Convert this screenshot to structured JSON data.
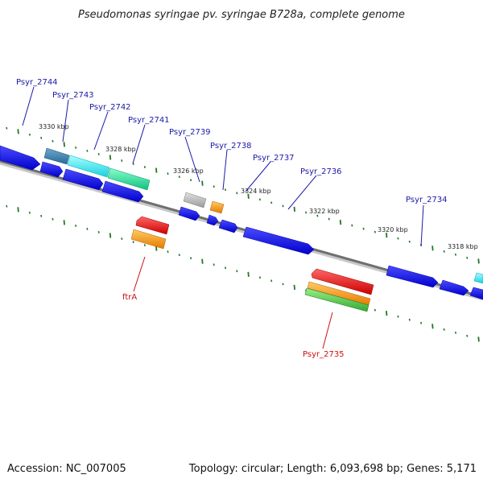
{
  "title": "Pseudomonas syringae pv. syringae B728a, complete genome",
  "footer": {
    "accession": "Accession: NC_007005",
    "summary": "Topology: circular; Length: 6,093,698 bp; Genes: 5,171"
  },
  "scale_labels": [
    "3330 kbp",
    "3328 kbp",
    "3326 kbp",
    "3324 kbp",
    "3322 kbp",
    "3320 kbp",
    "3318 kbp"
  ],
  "forward_labels": [
    "Psyr_2744",
    "Psyr_2743",
    "Psyr_2742",
    "Psyr_2741",
    "Psyr_2739",
    "Psyr_2738",
    "Psyr_2737",
    "Psyr_2736",
    "Psyr_2734"
  ],
  "reverse_labels": [
    "ftrA",
    "Psyr_2735"
  ],
  "colors": {
    "cds": "#1a1ae6",
    "gene_label": "#1a1aa6",
    "rev_label": "#cc1111",
    "backbone": "#7a7a7a",
    "tick": "#227722",
    "teal": "#3a8ab0",
    "cyan": "#22e6ee",
    "green": "#22dd99",
    "gray": "#b0b0b0",
    "orange": "#ff9900",
    "red": "#ee1111"
  }
}
